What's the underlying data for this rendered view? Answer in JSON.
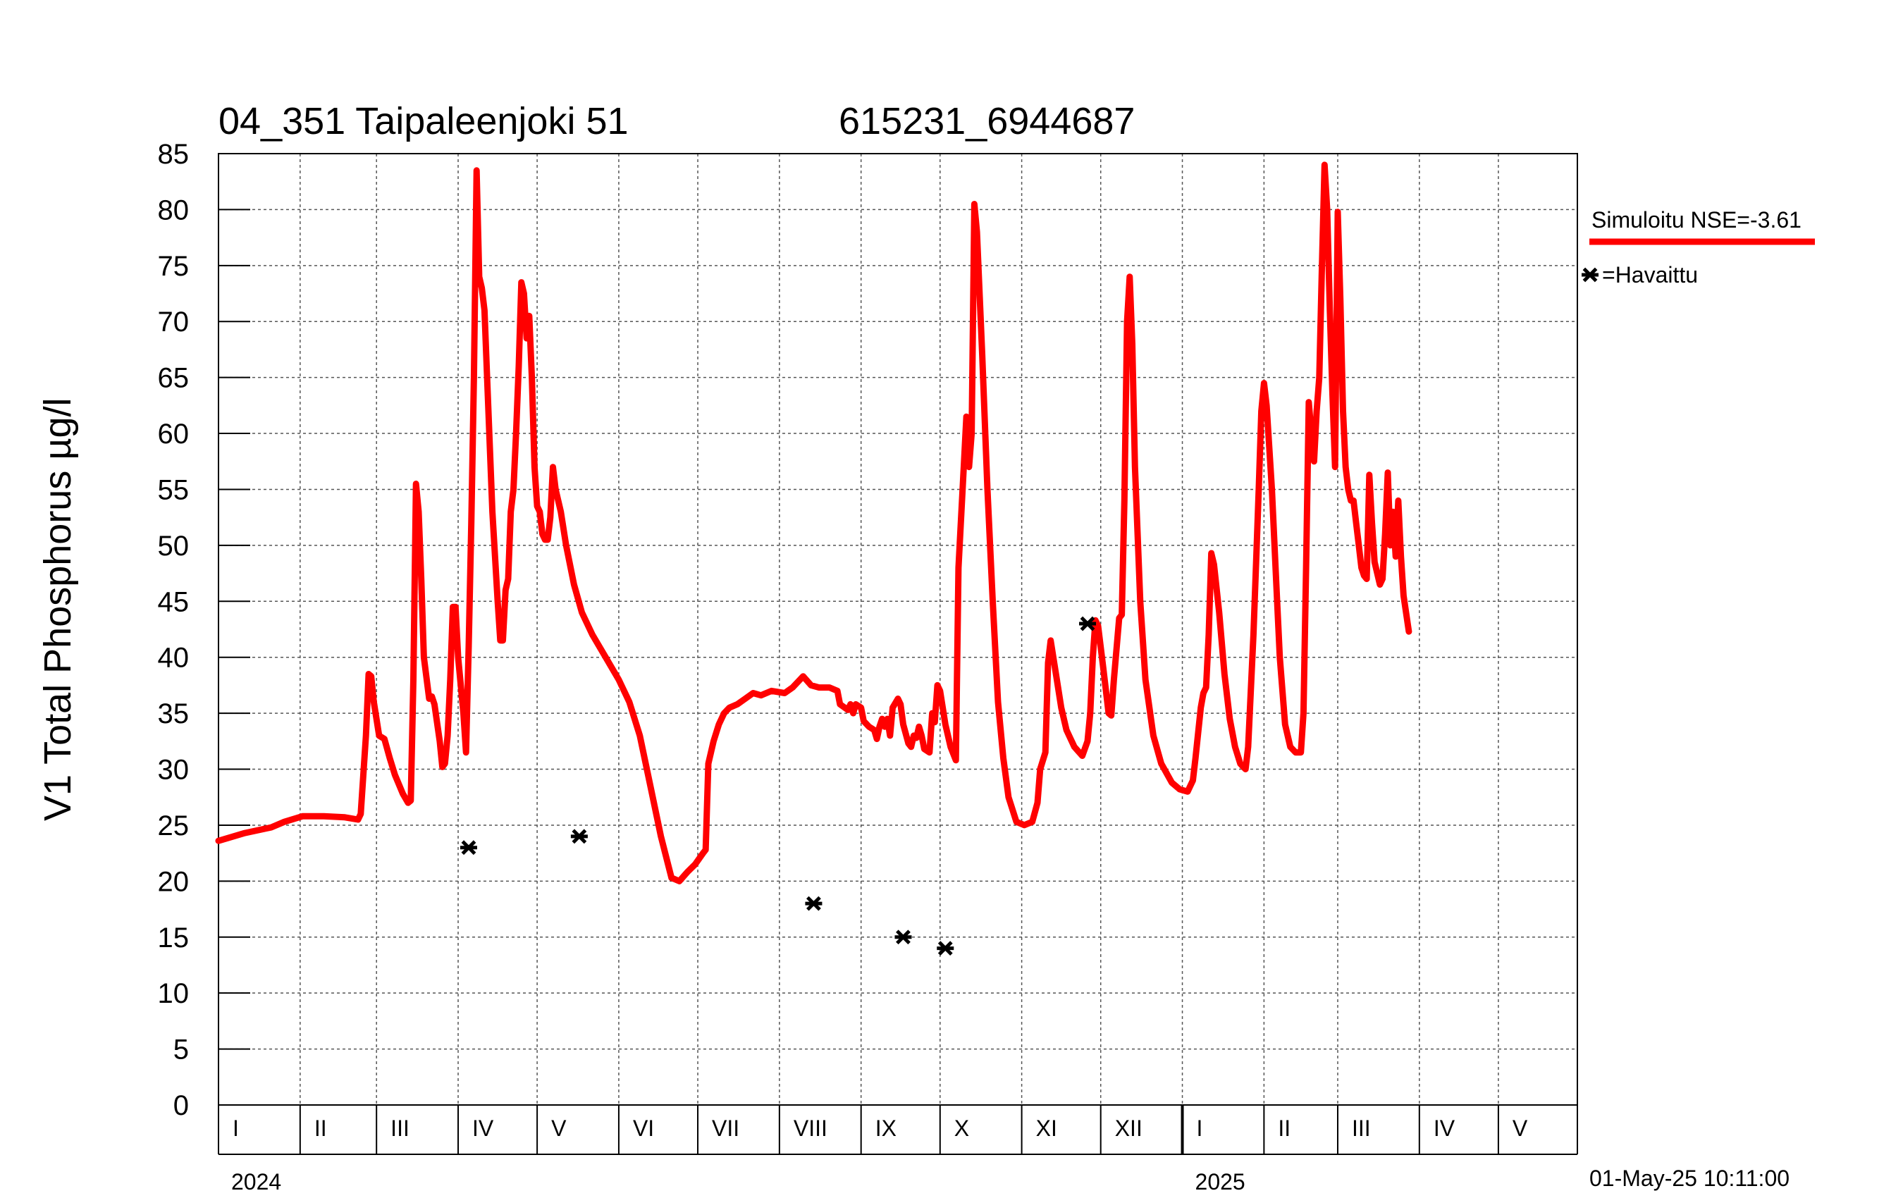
{
  "chart_data": {
    "type": "line",
    "title_left": "04_351 Taipaleenjoki 51",
    "title_right": "615231_6944687",
    "ylabel": "V1 Total Phosphorus µg/l",
    "ylim": [
      0,
      85
    ],
    "yticks": [
      0,
      5,
      10,
      15,
      20,
      25,
      30,
      35,
      40,
      45,
      50,
      55,
      60,
      65,
      70,
      75,
      80,
      85
    ],
    "xlim_days": [
      0,
      516
    ],
    "months": [
      {
        "label": "I",
        "start": 0
      },
      {
        "label": "II",
        "start": 31
      },
      {
        "label": "III",
        "start": 60
      },
      {
        "label": "IV",
        "start": 91
      },
      {
        "label": "V",
        "start": 121
      },
      {
        "label": "VI",
        "start": 152
      },
      {
        "label": "VII",
        "start": 182
      },
      {
        "label": "VIII",
        "start": 213
      },
      {
        "label": "IX",
        "start": 244
      },
      {
        "label": "X",
        "start": 274
      },
      {
        "label": "XI",
        "start": 305
      },
      {
        "label": "XII",
        "start": 335
      },
      {
        "label": "I",
        "start": 366
      },
      {
        "label": "II",
        "start": 397
      },
      {
        "label": "III",
        "start": 425
      },
      {
        "label": "IV",
        "start": 456
      },
      {
        "label": "V",
        "start": 486
      }
    ],
    "years": [
      {
        "label": "2024",
        "day": 0
      },
      {
        "label": "2025",
        "day": 366
      }
    ],
    "year_divider_day": 366,
    "series": [
      {
        "name": "Simuloitu NSE=-3.61",
        "color": "#ff0000",
        "points": [
          [
            0,
            23.6
          ],
          [
            10,
            24.3
          ],
          [
            20,
            24.8
          ],
          [
            25,
            25.3
          ],
          [
            32,
            25.8
          ],
          [
            40,
            25.8
          ],
          [
            48,
            25.7
          ],
          [
            53,
            25.5
          ],
          [
            54,
            26
          ],
          [
            56,
            33
          ],
          [
            57,
            38.5
          ],
          [
            58,
            38.3
          ],
          [
            59,
            36
          ],
          [
            61,
            33
          ],
          [
            63,
            32.7
          ],
          [
            65,
            31
          ],
          [
            67,
            29.5
          ],
          [
            70,
            27.8
          ],
          [
            72,
            27
          ],
          [
            73,
            27.2
          ],
          [
            74,
            38
          ],
          [
            75,
            55.5
          ],
          [
            76,
            53
          ],
          [
            77,
            47
          ],
          [
            78,
            40
          ],
          [
            80,
            36.3
          ],
          [
            81,
            36.5
          ],
          [
            82,
            35.8
          ],
          [
            84,
            32.5
          ],
          [
            85,
            30.2
          ],
          [
            86,
            30.5
          ],
          [
            87,
            33
          ],
          [
            88,
            38
          ],
          [
            89,
            44.5
          ],
          [
            90,
            44.5
          ],
          [
            91,
            40
          ],
          [
            93,
            35
          ],
          [
            94,
            31.5
          ],
          [
            95,
            41
          ],
          [
            96,
            52
          ],
          [
            97,
            65
          ],
          [
            98,
            83.5
          ],
          [
            99,
            74
          ],
          [
            100,
            73
          ],
          [
            101,
            71
          ],
          [
            102,
            65
          ],
          [
            104,
            53
          ],
          [
            106,
            45
          ],
          [
            107,
            41.5
          ],
          [
            108,
            41.5
          ],
          [
            109,
            46
          ],
          [
            110,
            47
          ],
          [
            111,
            53
          ],
          [
            112,
            55
          ],
          [
            113,
            60
          ],
          [
            114,
            66
          ],
          [
            115,
            73.5
          ],
          [
            116,
            72.5
          ],
          [
            117,
            68.5
          ],
          [
            118,
            70.5
          ],
          [
            119,
            65
          ],
          [
            120,
            57
          ],
          [
            121,
            53.5
          ],
          [
            122,
            53
          ],
          [
            123,
            51
          ],
          [
            124,
            50.5
          ],
          [
            125,
            50.5
          ],
          [
            126,
            52.5
          ],
          [
            127,
            57
          ],
          [
            128,
            55
          ],
          [
            130,
            53
          ],
          [
            132,
            50
          ],
          [
            135,
            46.5
          ],
          [
            138,
            44
          ],
          [
            142,
            42
          ],
          [
            147,
            40
          ],
          [
            152,
            38
          ],
          [
            156,
            36
          ],
          [
            160,
            33
          ],
          [
            164,
            28.5
          ],
          [
            168,
            24
          ],
          [
            172,
            20.3
          ],
          [
            175,
            20
          ],
          [
            178,
            20.8
          ],
          [
            181,
            21.5
          ],
          [
            184,
            22.5
          ],
          [
            185,
            22.8
          ],
          [
            186,
            30.5
          ],
          [
            188,
            32.5
          ],
          [
            190,
            34
          ],
          [
            192,
            35
          ],
          [
            194,
            35.5
          ],
          [
            197,
            35.8
          ],
          [
            200,
            36.3
          ],
          [
            203,
            36.8
          ],
          [
            206,
            36.6
          ],
          [
            210,
            37
          ],
          [
            215,
            36.8
          ],
          [
            218,
            37.3
          ],
          [
            222,
            38.3
          ],
          [
            225,
            37.5
          ],
          [
            228,
            37.3
          ],
          [
            232,
            37.3
          ],
          [
            235,
            37
          ],
          [
            236,
            35.8
          ],
          [
            239,
            35.3
          ],
          [
            240,
            35.8
          ],
          [
            241,
            35
          ],
          [
            242,
            35.8
          ],
          [
            244,
            35.5
          ],
          [
            245,
            34.3
          ],
          [
            247,
            33.8
          ],
          [
            249,
            33.5
          ],
          [
            250,
            32.7
          ],
          [
            251,
            33.8
          ],
          [
            252,
            34.5
          ],
          [
            253,
            33.8
          ],
          [
            254,
            34.5
          ],
          [
            255,
            33
          ],
          [
            256,
            35.5
          ],
          [
            258,
            36.3
          ],
          [
            259,
            35.8
          ],
          [
            260,
            34
          ],
          [
            262,
            32.3
          ],
          [
            263,
            32
          ],
          [
            264,
            33
          ],
          [
            265,
            32.8
          ],
          [
            266,
            33.8
          ],
          [
            267,
            33
          ],
          [
            268,
            31.8
          ],
          [
            270,
            31.5
          ],
          [
            271,
            35
          ],
          [
            272,
            34.2
          ],
          [
            273,
            37.5
          ],
          [
            274,
            37
          ],
          [
            276,
            34
          ],
          [
            278,
            32
          ],
          [
            280,
            30.8
          ],
          [
            281,
            48
          ],
          [
            283,
            57
          ],
          [
            284,
            61.5
          ],
          [
            285,
            57
          ],
          [
            286,
            60
          ],
          [
            287,
            80.5
          ],
          [
            288,
            78
          ],
          [
            290,
            67
          ],
          [
            292,
            55
          ],
          [
            294,
            45
          ],
          [
            296,
            36
          ],
          [
            298,
            31
          ],
          [
            300,
            27.5
          ],
          [
            303,
            25.3
          ],
          [
            306,
            25
          ],
          [
            309,
            25.3
          ],
          [
            311,
            27
          ],
          [
            312,
            30
          ],
          [
            314,
            31.5
          ],
          [
            315,
            39.5
          ],
          [
            316,
            41.5
          ],
          [
            318,
            38.5
          ],
          [
            320,
            35.5
          ],
          [
            322,
            33.5
          ],
          [
            325,
            32
          ],
          [
            328,
            31.2
          ],
          [
            330,
            32.5
          ],
          [
            331,
            35
          ],
          [
            332,
            40
          ],
          [
            333,
            43.3
          ],
          [
            334,
            42.8
          ],
          [
            336,
            39
          ],
          [
            338,
            35
          ],
          [
            339,
            34.8
          ],
          [
            340,
            38
          ],
          [
            342,
            43.5
          ],
          [
            343,
            43.8
          ],
          [
            344,
            54
          ],
          [
            345,
            70
          ],
          [
            346,
            74
          ],
          [
            347,
            68
          ],
          [
            348,
            57
          ],
          [
            350,
            45
          ],
          [
            352,
            38
          ],
          [
            355,
            33
          ],
          [
            358,
            30.5
          ],
          [
            362,
            28.8
          ],
          [
            365,
            28.2
          ],
          [
            368,
            28
          ],
          [
            370,
            29
          ],
          [
            371,
            31
          ],
          [
            373,
            35.5
          ],
          [
            374,
            36.8
          ],
          [
            375,
            37.3
          ],
          [
            376,
            42
          ],
          [
            377,
            49.3
          ],
          [
            378,
            48.3
          ],
          [
            380,
            44
          ],
          [
            382,
            38.5
          ],
          [
            384,
            34.5
          ],
          [
            386,
            32
          ],
          [
            388,
            30.5
          ],
          [
            390,
            30
          ],
          [
            391,
            32
          ],
          [
            393,
            42
          ],
          [
            394,
            48.5
          ],
          [
            395,
            55
          ],
          [
            396,
            62
          ],
          [
            397,
            64.5
          ],
          [
            398,
            62.5
          ],
          [
            400,
            55
          ],
          [
            402,
            45
          ],
          [
            403,
            40
          ],
          [
            405,
            34
          ],
          [
            407,
            32
          ],
          [
            409,
            31.5
          ],
          [
            411,
            31.5
          ],
          [
            412,
            35
          ],
          [
            413,
            48
          ],
          [
            414,
            62.8
          ],
          [
            415,
            60
          ],
          [
            416,
            57.5
          ],
          [
            417,
            62
          ],
          [
            418,
            65
          ],
          [
            419,
            75
          ],
          [
            420,
            84
          ],
          [
            421,
            80
          ],
          [
            422,
            71
          ],
          [
            423,
            63.5
          ],
          [
            424,
            57
          ],
          [
            425,
            79.8
          ],
          [
            426,
            72
          ],
          [
            427,
            62
          ],
          [
            428,
            57
          ],
          [
            429,
            55
          ],
          [
            430,
            54
          ],
          [
            431,
            54
          ],
          [
            432,
            52
          ],
          [
            433,
            50
          ],
          [
            434,
            48
          ],
          [
            435,
            47.3
          ],
          [
            436,
            47
          ],
          [
            437,
            56.3
          ],
          [
            438,
            52
          ],
          [
            439,
            48.5
          ],
          [
            441,
            46.5
          ],
          [
            442,
            47
          ],
          [
            443,
            51
          ],
          [
            444,
            56.5
          ],
          [
            445,
            50
          ],
          [
            446,
            53
          ],
          [
            447,
            49
          ],
          [
            448,
            54
          ],
          [
            449,
            49
          ],
          [
            450,
            45.5
          ],
          [
            452,
            42.3
          ]
        ]
      }
    ],
    "observed": {
      "name": "=Havaittu",
      "points": [
        [
          95,
          23
        ],
        [
          137,
          24
        ],
        [
          226,
          18
        ],
        [
          260,
          15
        ],
        [
          276,
          14
        ],
        [
          330,
          43
        ]
      ]
    }
  },
  "legend": {
    "sim_label": "Simuloitu NSE=-3.61",
    "obs_label": "=Havaittu",
    "sim_color": "#ff0000",
    "obs_color": "#000000"
  },
  "timestamp": "01-May-25 10:11:00"
}
